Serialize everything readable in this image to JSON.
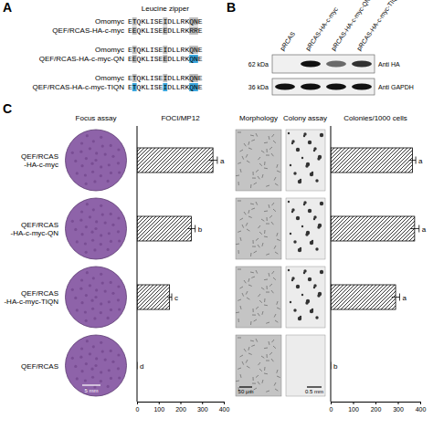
{
  "panel_a": {
    "label": "A",
    "header": "Leucine zipper",
    "pairs": [
      [
        {
          "name": "Omomyc",
          "sequence": "ETQKLISEIDLLRKQNE",
          "grey": [
            1,
            8,
            14,
            15
          ],
          "blue": []
        },
        {
          "name": "QEF/RCAS-HA-c-myc",
          "sequence": "EEQKLISEEDLLRKRRE",
          "grey": [
            1,
            8,
            14,
            15
          ],
          "blue": []
        }
      ],
      [
        {
          "name": "Omomyc",
          "sequence": "ETQKLISEIDLLRKQNE",
          "grey": [
            1,
            8,
            14,
            15
          ],
          "blue": []
        },
        {
          "name": "QEF/RCAS-HA-c-myc-QN",
          "sequence": "EEQKLISEEDLLRKQNE",
          "grey": [
            1,
            8
          ],
          "blue": [
            14,
            15
          ]
        }
      ],
      [
        {
          "name": "Omomyc",
          "sequence": "ETQKLISEIDLLRKQNE",
          "grey": [
            1,
            8,
            14,
            15
          ],
          "blue": []
        },
        {
          "name": "QEF/RCAS-HA-c-myc-TIQN",
          "sequence": "ETQKLISEIDLLRKQNE",
          "grey": [],
          "blue": [
            1,
            8,
            14,
            15
          ]
        }
      ]
    ]
  },
  "panel_b": {
    "label": "B",
    "lanes": [
      "pRCAS",
      "pRCAS-HA-c-myc",
      "pRCAS-HA-c-myc-QN",
      "pRCAS-HA-c-myc-TIQN"
    ],
    "rows": [
      {
        "size": "62 kDa",
        "antibody": "Anti HA",
        "intensity": [
          0,
          1,
          0.6,
          0.85
        ]
      },
      {
        "size": "36 kDa",
        "antibody": "Anti GAPDH",
        "intensity": [
          1,
          1,
          1,
          1
        ]
      }
    ]
  },
  "panel_c": {
    "label": "C",
    "headers": {
      "focus": "Focus assay",
      "morphology": "Morphology",
      "colony": "Colony assay"
    },
    "scale_bars": {
      "focus": "5 mm",
      "morphology": "50 μm",
      "colony": "0.5 mm"
    }
  },
  "chart_data": [
    {
      "type": "bar",
      "orientation": "horizontal",
      "title": "FOCI/MP12",
      "categories": [
        "QEF/RCAS\n-HA-c-myc",
        "QEF/RCAS\n-HA-c-myc-QN",
        "QEF/RCAS\n-HA-c-myc-TIQN",
        "QEF/RCAS"
      ],
      "values": [
        350,
        250,
        150,
        0
      ],
      "errors": [
        20,
        18,
        10,
        0
      ],
      "letters": [
        "a",
        "b",
        "c",
        "d"
      ],
      "color": "#000000",
      "xlim": [
        0,
        400
      ],
      "xticks": [
        0,
        100,
        200,
        300,
        400
      ],
      "tick_labels": true
    },
    {
      "type": "bar",
      "orientation": "horizontal",
      "title": "Colonies/1000 cells",
      "categories": [
        "QEF/RCAS\n-HA-c-myc",
        "QEF/RCAS\n-HA-c-myc-QN",
        "QEF/RCAS\n-HA-c-myc-TIQN",
        "QEF/RCAS"
      ],
      "values": [
        365,
        375,
        290,
        0
      ],
      "errors": [
        15,
        20,
        18,
        0
      ],
      "letters": [
        "a",
        "a",
        "a",
        "b"
      ],
      "color": "#000000",
      "xlim": [
        0,
        400
      ],
      "xticks": [
        0,
        100,
        200,
        300,
        400
      ],
      "tick_labels": "x"
    }
  ]
}
